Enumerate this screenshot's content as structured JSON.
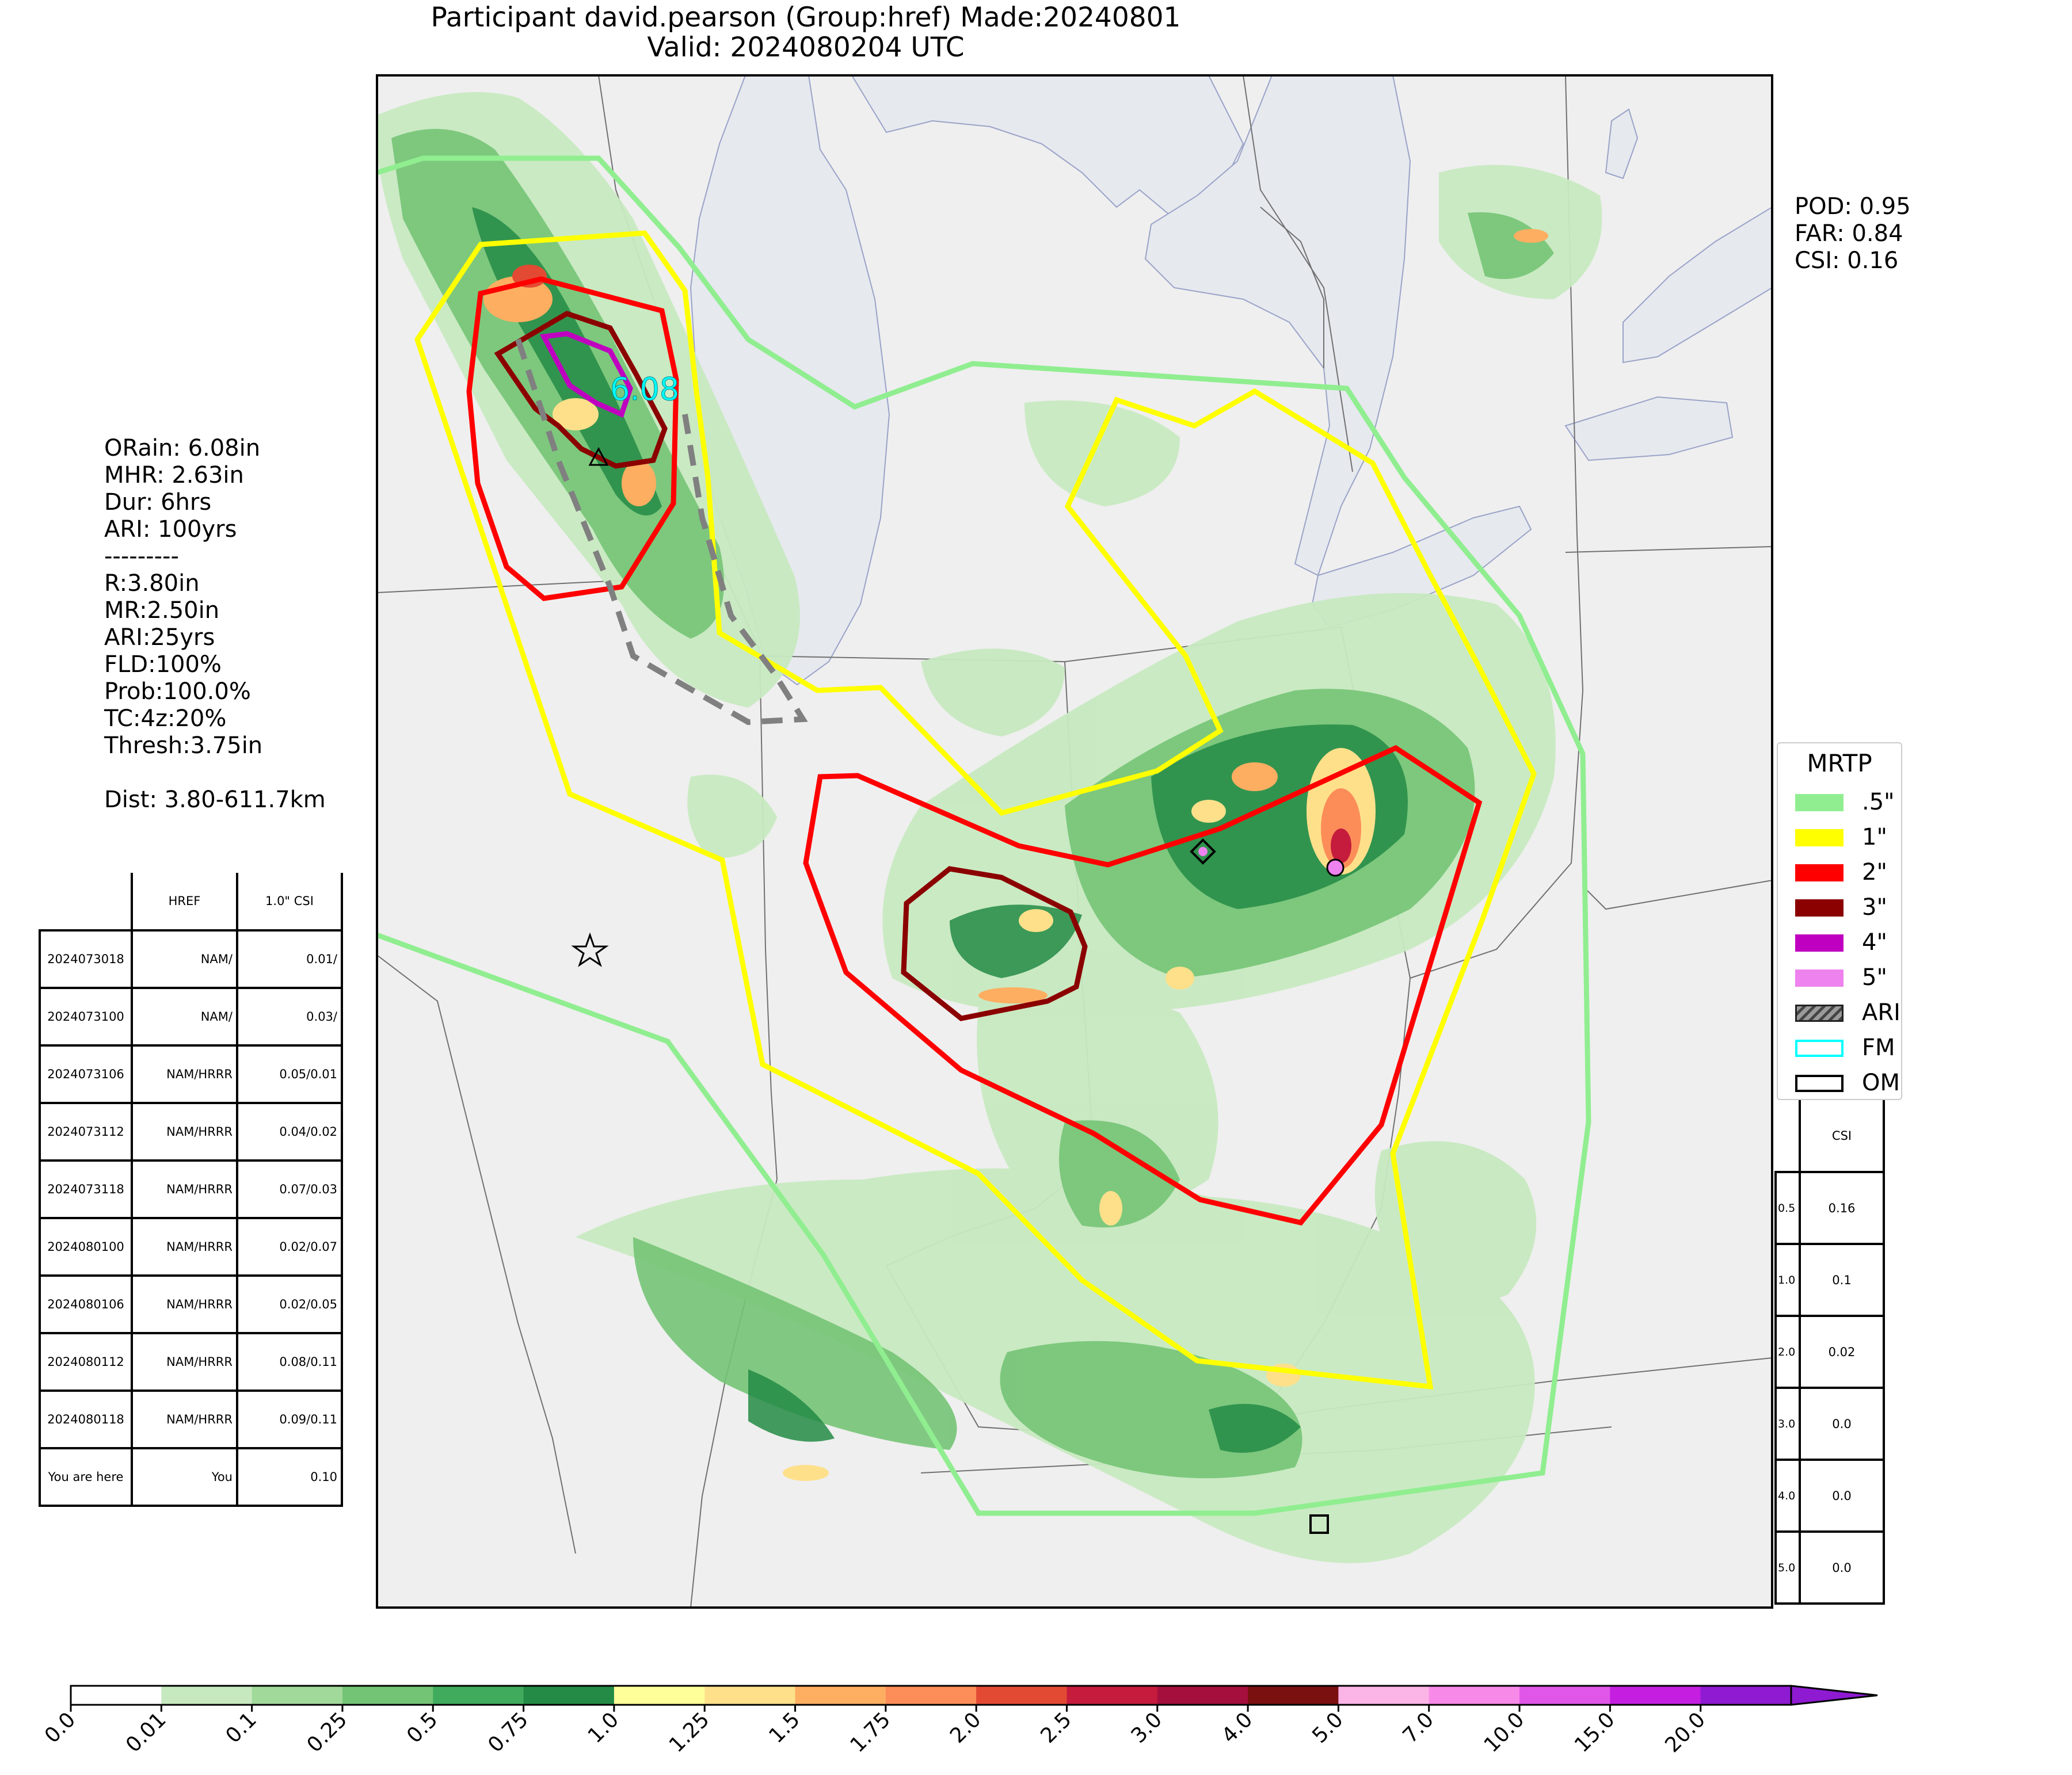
{
  "header": {
    "line1": "Participant david.pearson (Group:href) Made:20240801",
    "line2": "Valid: 2024080204 UTC"
  },
  "verification_stats": {
    "pod": "POD: 0.95",
    "far": "FAR: 0.84",
    "csi": "CSI: 0.16"
  },
  "obs_summary": {
    "orain": "ORain: 6.08in",
    "mhr": "MHR: 2.63in",
    "dur": "Dur: 6hrs",
    "ari": "ARI: 100yrs",
    "sep": "---------",
    "r": "R:3.80in",
    "mr": "MR:2.50in",
    "ari2": "ARI:25yrs",
    "fld": "FLD:100%",
    "prob": "Prob:100.0%",
    "tc": "TC:4z:20%",
    "thresh": "Thresh:3.75in",
    "dist": "Dist: 3.80-611.7km"
  },
  "map": {
    "overlay_text": "6.08",
    "colors": {
      "background": "#efefef",
      "lake": "#e6e9ee",
      "contour_half": "#90ee90",
      "contour_1": "#ffff00",
      "contour_2": "#ff0000",
      "contour_3": "#8b0000",
      "contour_4": "#c000c0",
      "contour_5": "#ee82ee",
      "ari_dash": "#808080",
      "fm": "#00ffff"
    },
    "markers": [
      "star-marker",
      "diamond-marker",
      "circle-marker",
      "triangle-marker",
      "square-marker"
    ]
  },
  "legend": {
    "title": "MRTP",
    "items": [
      {
        "label": ".5\"",
        "color": "#90ee90",
        "kind": "fill"
      },
      {
        "label": "1\"",
        "color": "#ffff00",
        "kind": "fill"
      },
      {
        "label": "2\"",
        "color": "#ff0000",
        "kind": "fill"
      },
      {
        "label": "3\"",
        "color": "#8b0000",
        "kind": "fill"
      },
      {
        "label": "4\"",
        "color": "#c000c0",
        "kind": "fill"
      },
      {
        "label": "5\"",
        "color": "#ee82ee",
        "kind": "fill"
      },
      {
        "label": "ARI",
        "color": "#808080",
        "kind": "hatch"
      },
      {
        "label": "FM",
        "color": "#00ffff",
        "kind": "outline"
      },
      {
        "label": "OM",
        "color": "#000000",
        "kind": "outline"
      }
    ]
  },
  "history_table": {
    "headers": [
      "",
      "HREF",
      "1.0\" CSI"
    ],
    "rows": [
      [
        "2024073018",
        "NAM/",
        "0.01/"
      ],
      [
        "2024073100",
        "NAM/",
        "0.03/"
      ],
      [
        "2024073106",
        "NAM/HRRR",
        "0.05/0.01"
      ],
      [
        "2024073112",
        "NAM/HRRR",
        "0.04/0.02"
      ],
      [
        "2024073118",
        "NAM/HRRR",
        "0.07/0.03"
      ],
      [
        "2024080100",
        "NAM/HRRR",
        "0.02/0.07"
      ],
      [
        "2024080106",
        "NAM/HRRR",
        "0.02/0.05"
      ],
      [
        "2024080112",
        "NAM/HRRR",
        "0.08/0.11"
      ],
      [
        "2024080118",
        "NAM/HRRR",
        "0.09/0.11"
      ],
      [
        "You are here",
        "You",
        "0.10"
      ]
    ]
  },
  "csi_table": {
    "header": "CSI",
    "rows": [
      [
        "0.5",
        "0.16"
      ],
      [
        "1.0",
        "0.1"
      ],
      [
        "2.0",
        "0.02"
      ],
      [
        "3.0",
        "0.0"
      ],
      [
        "4.0",
        "0.0"
      ],
      [
        "5.0",
        "0.0"
      ]
    ]
  },
  "colorbar": {
    "ticks": [
      "0.0",
      "0.01",
      "0.1",
      "0.25",
      "0.5",
      "0.75",
      "1.0",
      "1.25",
      "1.5",
      "1.75",
      "2.0",
      "2.5",
      "3.0",
      "4.0",
      "5.0",
      "7.0",
      "10.0",
      "15.0",
      "20.0"
    ],
    "colors": [
      "#ffffff",
      "#c7e9c0",
      "#a1d99b",
      "#74c476",
      "#41ab5d",
      "#238b45",
      "#ffff99",
      "#fee08b",
      "#fdae61",
      "#fc8d59",
      "#e34a33",
      "#c51b3d",
      "#a50f3d",
      "#7a1010",
      "#fbb4e6",
      "#f78ae8",
      "#e057e8",
      "#c41ee0",
      "#8e1ad1"
    ]
  }
}
